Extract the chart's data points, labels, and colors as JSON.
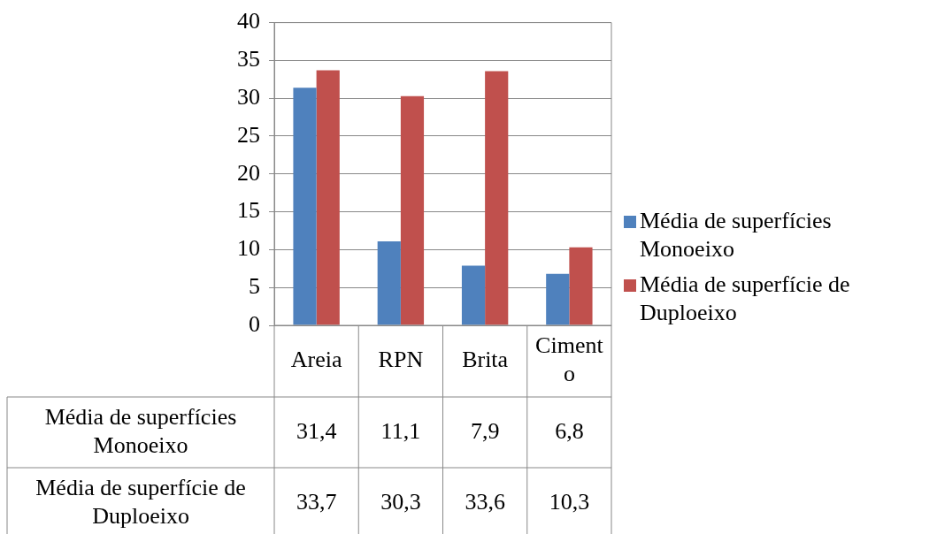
{
  "chart_data": {
    "type": "bar",
    "categories": [
      "Areia",
      "RPN",
      "Brita",
      "Cimento"
    ],
    "series": [
      {
        "name": "Média de superfícies Monoeixo",
        "color": "#4f81bd",
        "values": [
          31.4,
          11.1,
          7.9,
          6.8
        ],
        "value_labels": [
          "31,4",
          "11,1",
          "7,9",
          "6,8"
        ]
      },
      {
        "name": "Média de superfície de Duploeixo",
        "color": "#c0504d",
        "values": [
          33.7,
          30.3,
          33.6,
          10.3
        ],
        "value_labels": [
          "33,7",
          "30,3",
          "33,6",
          "10,3"
        ]
      }
    ],
    "ylim": [
      0,
      40
    ],
    "yticks": [
      0,
      5,
      10,
      15,
      20,
      25,
      30,
      35,
      40
    ],
    "grid": "y",
    "legend": "right"
  }
}
